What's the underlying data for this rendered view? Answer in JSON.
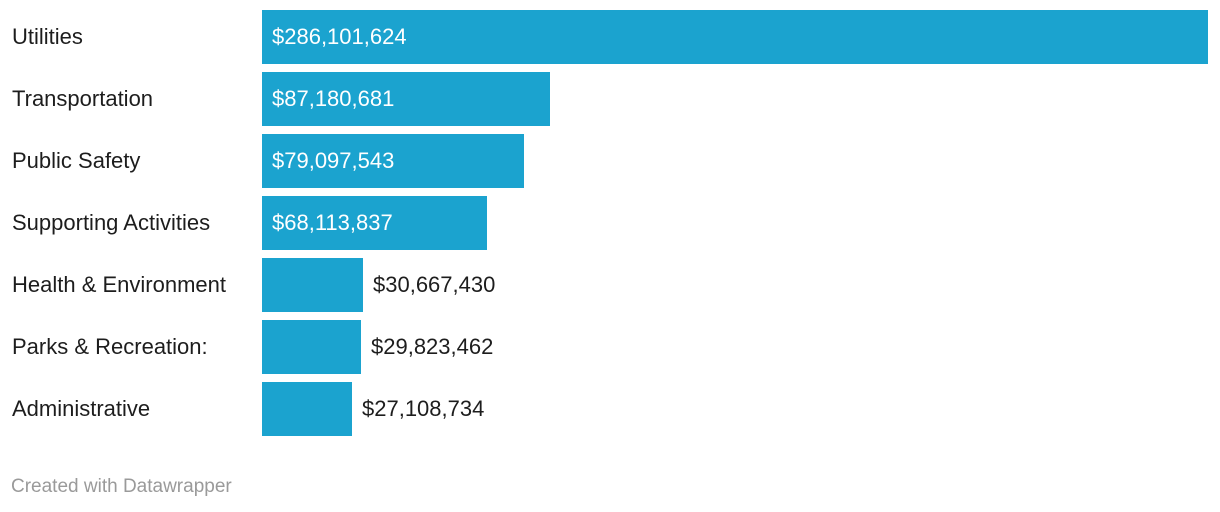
{
  "chart_data": {
    "type": "bar",
    "orientation": "horizontal",
    "categories": [
      "Utilities",
      "Transportation",
      "Public Safety",
      "Supporting Activities",
      "Health & Environment",
      "Parks & Recreation:",
      "Administrative"
    ],
    "values": [
      286101624,
      87180681,
      79097543,
      68113837,
      30667430,
      29823462,
      27108734
    ],
    "value_labels": [
      "$286,101,624",
      "$87,180,681",
      "$79,097,543",
      "$68,113,837",
      "$30,667,430",
      "$29,823,462",
      "$27,108,734"
    ],
    "title": "",
    "xlabel": "",
    "ylabel": "",
    "xlim": [
      0,
      286101624
    ],
    "grid": false,
    "legend": "none",
    "bar_color": "#1ba3cf"
  },
  "footer": {
    "credit": "Created with Datawrapper"
  }
}
